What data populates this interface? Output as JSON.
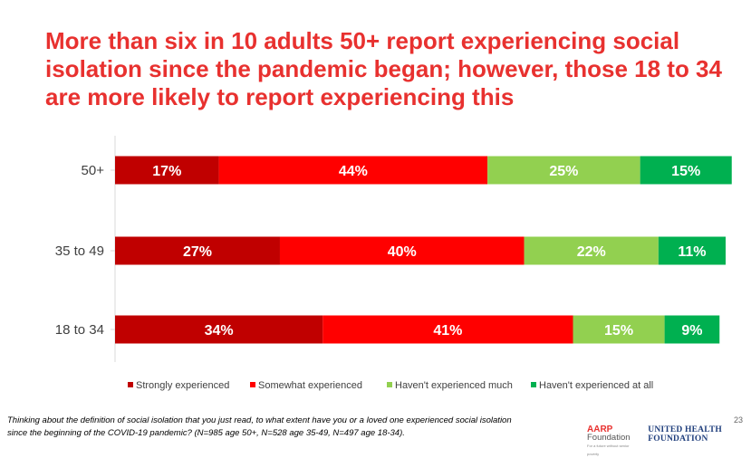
{
  "title": {
    "line1": "More than six in 10 adults 50+ report experiencing social",
    "line2": "isolation since the pandemic began; however, those 18 to 34",
    "line3": "are more likely to report experiencing this"
  },
  "chart_data": {
    "type": "bar",
    "orientation": "horizontal",
    "stacked": true,
    "unit": "%",
    "categories": [
      "50+",
      "35 to 49",
      "18 to 34"
    ],
    "series": [
      {
        "name": "Strongly experienced",
        "values": [
          17,
          27,
          34
        ],
        "color": "#c00000"
      },
      {
        "name": "Somewhat experienced",
        "values": [
          44,
          40,
          41
        ],
        "color": "#ff0000"
      },
      {
        "name": "Haven't experienced much",
        "values": [
          25,
          22,
          15
        ],
        "color": "#92d050"
      },
      {
        "name": "Haven't experienced at all",
        "values": [
          15,
          11,
          9
        ],
        "color": "#00b050"
      }
    ],
    "legend_position": "bottom",
    "grid": false
  },
  "footnote": {
    "line1": "Thinking about the definition of social isolation that you just read, to what extent have you or a loved one experienced social isolation",
    "line2": "since the beginning of the COVID-19 pandemic? (N=985 age 50+, N=528 age 35-49,  N=497 age 18-34)."
  },
  "page_number": "23",
  "logos": {
    "aarp": "AARP",
    "foundation": "Foundation",
    "aarp_tagline": "For a future without senior poverty",
    "united_health": "UNITED HEALTH FOUNDATION"
  }
}
